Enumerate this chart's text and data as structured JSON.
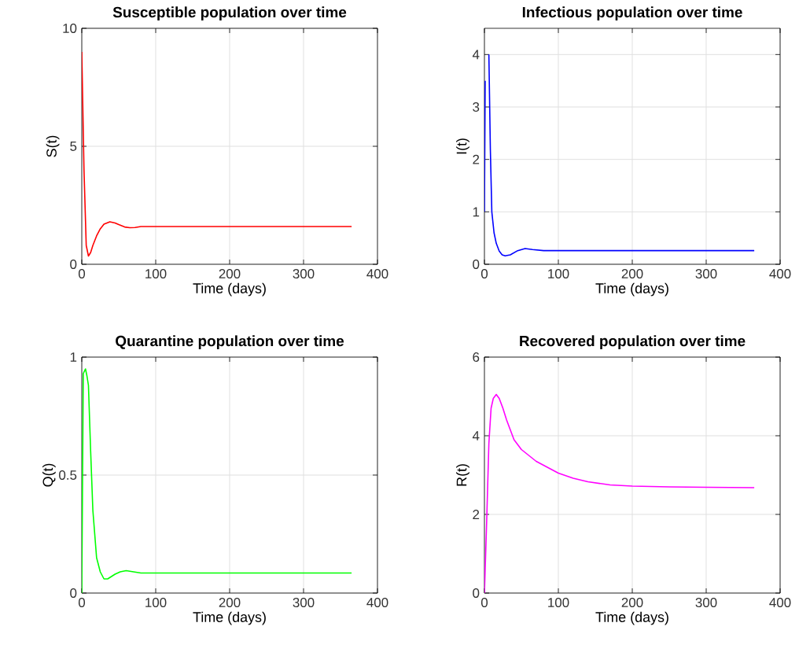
{
  "chart_data": [
    {
      "type": "line",
      "title": "Susceptible population over time",
      "xlabel": "Time (days)",
      "ylabel": "S(t)",
      "x": [
        0,
        3,
        6,
        9,
        12,
        15,
        20,
        25,
        30,
        38,
        45,
        50,
        58,
        65,
        72,
        80,
        100,
        150,
        200,
        250,
        300,
        365
      ],
      "series": [
        {
          "color": "#ff0000",
          "values": [
            9,
            4,
            0.8,
            0.35,
            0.5,
            0.8,
            1.2,
            1.5,
            1.7,
            1.8,
            1.75,
            1.68,
            1.58,
            1.55,
            1.56,
            1.6,
            1.6,
            1.6,
            1.6,
            1.6,
            1.6,
            1.6
          ]
        }
      ],
      "xlim": [
        0,
        400
      ],
      "ylim": [
        0,
        10
      ],
      "xticks": [
        0,
        100,
        200,
        300,
        400
      ],
      "yticks": [
        0,
        5,
        10
      ],
      "grid": true,
      "line_style": "solid",
      "marker": "none"
    },
    {
      "type": "line",
      "title": "Infectious population over time",
      "xlabel": "Time (days)",
      "ylabel": "I(t)",
      "x": [
        0,
        1,
        3,
        6,
        8,
        10,
        13,
        16,
        20,
        24,
        28,
        35,
        45,
        55,
        65,
        80,
        100,
        150,
        200,
        250,
        300,
        365
      ],
      "series": [
        {
          "color": "#0000ff",
          "values": [
            1.0,
            3.5,
            null,
            4.0,
            2.2,
            1.0,
            0.6,
            0.4,
            0.25,
            0.18,
            0.16,
            0.18,
            0.26,
            0.3,
            0.28,
            0.26,
            0.26,
            0.26,
            0.26,
            0.26,
            0.26,
            0.26
          ]
        }
      ],
      "xlim": [
        0,
        400
      ],
      "ylim": [
        0,
        4.5
      ],
      "xticks": [
        0,
        100,
        200,
        300,
        400
      ],
      "yticks": [
        0,
        1,
        2,
        3,
        4
      ],
      "grid": true,
      "line_style": "solid",
      "marker": "none"
    },
    {
      "type": "line",
      "title": "Quarantine population over time",
      "xlabel": "Time (days)",
      "ylabel": "Q(t)",
      "x": [
        0,
        2,
        5,
        7,
        9,
        12,
        15,
        20,
        25,
        30,
        35,
        45,
        52,
        60,
        70,
        80,
        100,
        150,
        200,
        250,
        300,
        365
      ],
      "series": [
        {
          "color": "#00ff00",
          "values": [
            0,
            0.93,
            0.95,
            0.92,
            0.88,
            0.6,
            0.35,
            0.15,
            0.09,
            0.06,
            0.06,
            0.08,
            0.09,
            0.095,
            0.09,
            0.085,
            0.085,
            0.085,
            0.085,
            0.085,
            0.085,
            0.085
          ]
        }
      ],
      "xlim": [
        0,
        400
      ],
      "ylim": [
        0,
        1
      ],
      "xticks": [
        0,
        100,
        200,
        300,
        400
      ],
      "yticks": [
        0,
        0.5,
        1
      ],
      "grid": true,
      "line_style": "solid",
      "marker": "none"
    },
    {
      "type": "line",
      "title": "Recovered population over time",
      "xlabel": "Time (days)",
      "ylabel": "R(t)",
      "x": [
        0,
        3,
        6,
        9,
        12,
        16,
        20,
        25,
        30,
        40,
        50,
        60,
        70,
        85,
        100,
        120,
        140,
        170,
        200,
        250,
        300,
        365
      ],
      "series": [
        {
          "color": "#ff00ff",
          "values": [
            0,
            1.8,
            3.8,
            4.7,
            4.95,
            5.05,
            4.95,
            4.7,
            4.4,
            3.9,
            3.65,
            3.5,
            3.35,
            3.2,
            3.05,
            2.92,
            2.83,
            2.75,
            2.72,
            2.7,
            2.69,
            2.68
          ]
        }
      ],
      "xlim": [
        0,
        400
      ],
      "ylim": [
        0,
        6
      ],
      "xticks": [
        0,
        100,
        200,
        300,
        400
      ],
      "yticks": [
        0,
        2,
        4,
        6
      ],
      "grid": true,
      "line_style": "solid",
      "marker": "none"
    }
  ]
}
